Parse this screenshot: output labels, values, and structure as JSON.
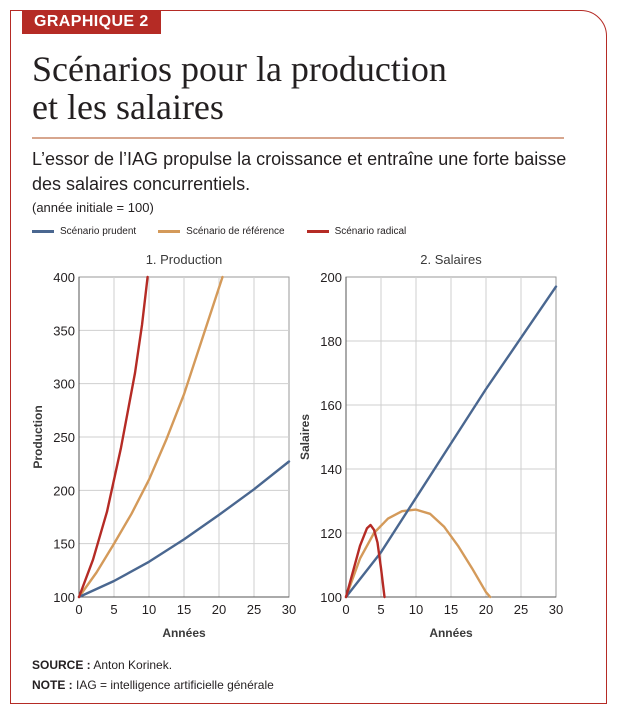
{
  "tag": "GRAPHIQUE 2",
  "title_line1": "Scénarios pour la production",
  "title_line2": "et les salaires",
  "subtitle": "L’essor de l’IAG propulse la croissance et entraîne une forte baisse des salaires concurrentiels.",
  "base_note": "(année initiale = 100)",
  "legend": [
    {
      "label": "Scénario prudent",
      "color": "#4a6790"
    },
    {
      "label": "Scénario de référence",
      "color": "#d49a5a"
    },
    {
      "label": "Scénario radical",
      "color": "#b52b25"
    }
  ],
  "source_label": "SOURCE :",
  "source_text": "Anton Korinek.",
  "note_label": "NOTE :",
  "note_text": "IAG = intelligence artificielle générale",
  "chart_data": [
    {
      "type": "line",
      "title": "1. Production",
      "xlabel": "Années",
      "ylabel": "Production",
      "xlim": [
        0,
        30
      ],
      "ylim": [
        100,
        400
      ],
      "xticks": [
        0,
        5,
        10,
        15,
        20,
        25,
        30
      ],
      "yticks": [
        100,
        150,
        200,
        250,
        300,
        350,
        400
      ],
      "grid": true,
      "series": [
        {
          "name": "Scénario prudent",
          "color": "#4a6790",
          "x": [
            0,
            5,
            10,
            15,
            20,
            25,
            30
          ],
          "y": [
            100,
            115,
            133,
            154,
            177,
            201,
            227
          ]
        },
        {
          "name": "Scénario de référence",
          "color": "#d49a5a",
          "x": [
            0,
            2.5,
            5,
            7.5,
            10,
            12.5,
            15,
            17.5,
            20.5
          ],
          "y": [
            100,
            123,
            150,
            178,
            210,
            248,
            290,
            340,
            400
          ]
        },
        {
          "name": "Scénario radical",
          "color": "#b52b25",
          "x": [
            0,
            2,
            4,
            6,
            8,
            9,
            9.8
          ],
          "y": [
            100,
            135,
            180,
            240,
            310,
            355,
            400
          ]
        }
      ]
    },
    {
      "type": "line",
      "title": "2. Salaires",
      "xlabel": "Années",
      "ylabel": "Salaires",
      "xlim": [
        0,
        30
      ],
      "ylim": [
        100,
        200
      ],
      "xticks": [
        0,
        5,
        10,
        15,
        20,
        25,
        30
      ],
      "yticks": [
        100,
        120,
        140,
        160,
        180,
        200
      ],
      "grid": true,
      "series": [
        {
          "name": "Scénario prudent",
          "color": "#4a6790",
          "x": [
            0,
            5,
            10,
            15,
            20,
            25,
            30
          ],
          "y": [
            100,
            114,
            131,
            148,
            165,
            181,
            197
          ]
        },
        {
          "name": "Scénario de référence",
          "color": "#d49a5a",
          "x": [
            0,
            2,
            4,
            6,
            8,
            10,
            12,
            14,
            16,
            18,
            20,
            20.6
          ],
          "y": [
            100,
            112,
            120,
            124.5,
            126.8,
            127.3,
            126,
            122,
            116,
            109,
            101.5,
            100
          ]
        },
        {
          "name": "Scénario radical",
          "color": "#b52b25",
          "x": [
            0,
            1,
            2,
            3,
            3.5,
            4,
            4.5,
            5,
            5.5
          ],
          "y": [
            100,
            108,
            116,
            121.5,
            122.5,
            121,
            117,
            109,
            100
          ]
        }
      ]
    }
  ]
}
